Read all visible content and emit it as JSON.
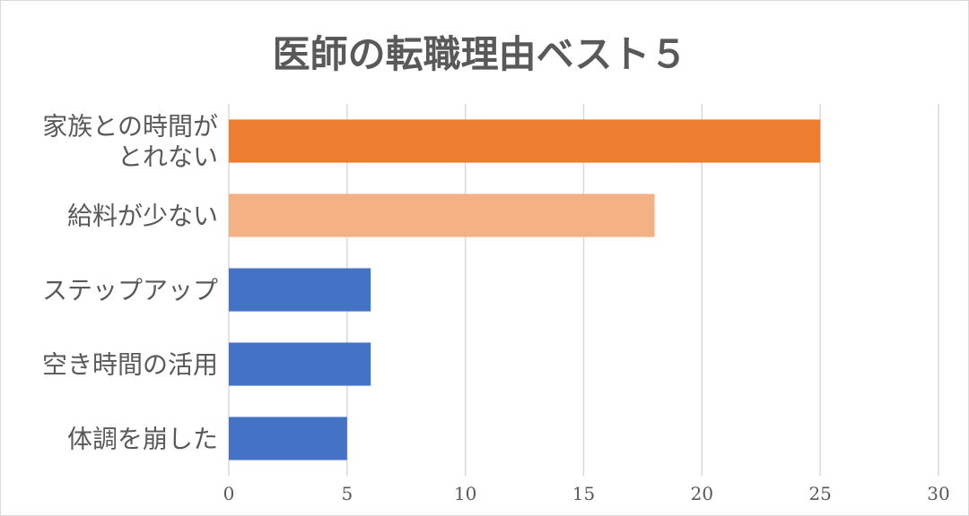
{
  "chart_data": {
    "type": "bar",
    "orientation": "horizontal",
    "title": "医師の転職理由ベスト５",
    "categories": [
      [
        "家族との時間が",
        "とれない"
      ],
      [
        "給料が少ない"
      ],
      [
        "ステップアップ"
      ],
      [
        "空き時間の活用"
      ],
      [
        "体調を崩した"
      ]
    ],
    "values": [
      25,
      18,
      6,
      6,
      5
    ],
    "bar_colors": [
      "#ed7d31",
      "#f4b183",
      "#4472c4",
      "#4472c4",
      "#4472c4"
    ],
    "xlim": [
      0,
      30
    ],
    "xticks": [
      0,
      5,
      10,
      15,
      20,
      25,
      30
    ],
    "grid": true,
    "legend": "none"
  }
}
